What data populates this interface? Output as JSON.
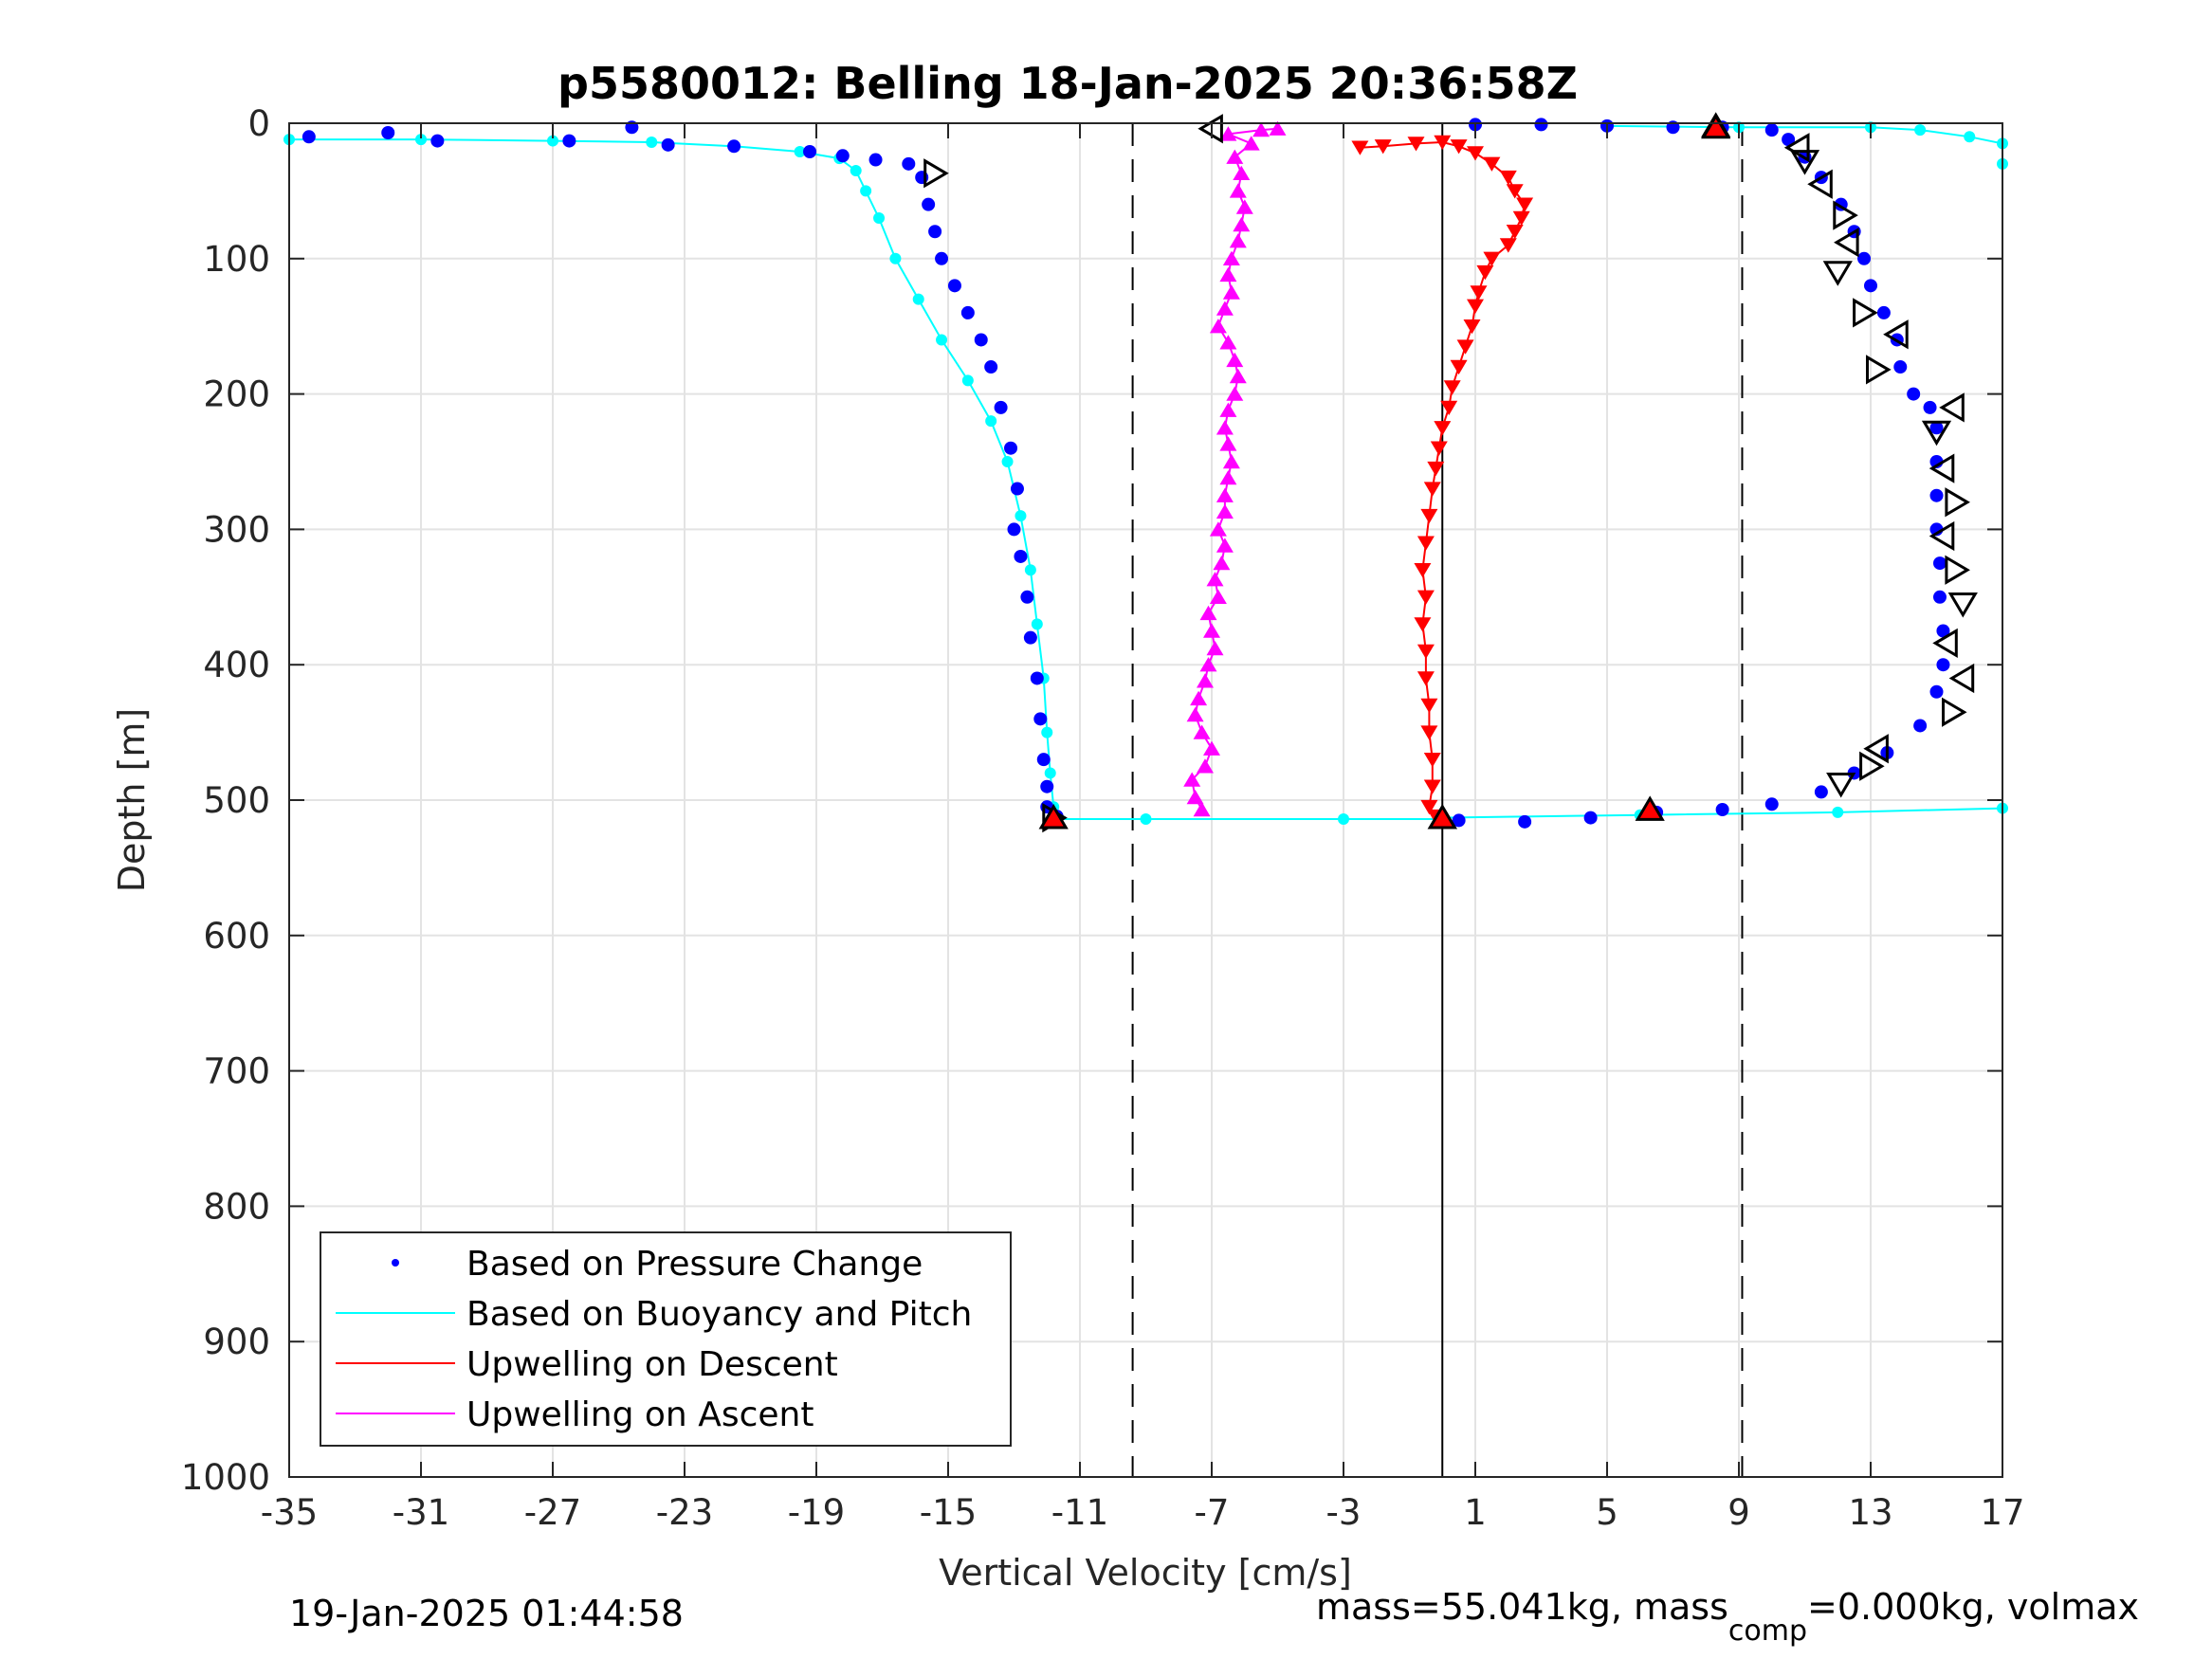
{
  "chart_data": {
    "type": "scatter",
    "title": "p5580012: Belling 18-Jan-2025 20:36:58Z",
    "xlabel": "Vertical Velocity [cm/s]",
    "ylabel": "Depth [m]",
    "xlim": [
      -35,
      17
    ],
    "ylim": [
      0,
      1000
    ],
    "y_reversed": true,
    "xticks": [
      -35,
      -31,
      -27,
      -23,
      -19,
      -15,
      -11,
      -7,
      -3,
      1,
      5,
      9,
      13,
      17
    ],
    "yticks": [
      0,
      100,
      200,
      300,
      400,
      500,
      600,
      700,
      800,
      900,
      1000
    ],
    "grid": true,
    "legend_position": "bottom-left",
    "reference_lines": [
      {
        "x": -9.4,
        "style": "dashed"
      },
      {
        "x": 9.1,
        "style": "dashed"
      },
      {
        "x": 0,
        "style": "solid"
      }
    ],
    "series": [
      {
        "name": "Based on Pressure Change",
        "color": "#0000ff",
        "marker": "dot",
        "descent": [
          [
            -34.4,
            10
          ],
          [
            -32,
            7
          ],
          [
            -30.5,
            13
          ],
          [
            -26.5,
            13
          ],
          [
            -24.6,
            3
          ],
          [
            -23.5,
            16
          ],
          [
            -21.5,
            17
          ],
          [
            -19.2,
            21
          ],
          [
            -18.2,
            24
          ],
          [
            -17.2,
            27
          ],
          [
            -16.2,
            30
          ],
          [
            -15.8,
            40
          ],
          [
            -15.6,
            60
          ],
          [
            -15.4,
            80
          ],
          [
            -15.2,
            100
          ],
          [
            -14.8,
            120
          ],
          [
            -14.4,
            140
          ],
          [
            -14,
            160
          ],
          [
            -13.7,
            180
          ],
          [
            -13.4,
            210
          ],
          [
            -13.1,
            240
          ],
          [
            -12.9,
            270
          ],
          [
            -13,
            300
          ],
          [
            -12.8,
            320
          ],
          [
            -12.6,
            350
          ],
          [
            -12.5,
            380
          ],
          [
            -12.3,
            410
          ],
          [
            -12.2,
            440
          ],
          [
            -12.1,
            470
          ],
          [
            -12,
            490
          ],
          [
            -12,
            505
          ],
          [
            -11.7,
            512
          ]
        ],
        "ascent": [
          [
            0.5,
            515
          ],
          [
            2.5,
            516
          ],
          [
            4.5,
            513
          ],
          [
            6.5,
            509
          ],
          [
            8.5,
            507
          ],
          [
            10,
            503
          ],
          [
            11.5,
            494
          ],
          [
            12.5,
            480
          ],
          [
            13.5,
            465
          ],
          [
            14.5,
            445
          ],
          [
            15,
            420
          ],
          [
            15.2,
            400
          ],
          [
            15.2,
            375
          ],
          [
            15.1,
            350
          ],
          [
            15.1,
            325
          ],
          [
            15,
            300
          ],
          [
            15,
            275
          ],
          [
            15,
            250
          ],
          [
            15,
            225
          ],
          [
            14.8,
            210
          ],
          [
            14.3,
            200
          ],
          [
            13.9,
            180
          ],
          [
            13.8,
            160
          ],
          [
            13.4,
            140
          ],
          [
            13,
            120
          ],
          [
            12.8,
            100
          ],
          [
            12.5,
            80
          ],
          [
            12.1,
            60
          ],
          [
            11.5,
            40
          ],
          [
            11,
            25
          ],
          [
            10.5,
            12
          ],
          [
            10,
            5
          ],
          [
            8.5,
            3
          ],
          [
            7,
            3
          ],
          [
            5,
            2
          ],
          [
            3,
            1
          ],
          [
            1,
            1
          ]
        ]
      },
      {
        "name": "Based on Buoyancy and Pitch",
        "color": "#00ffff",
        "marker": "line",
        "descent": [
          [
            -35,
            12
          ],
          [
            -31,
            12
          ],
          [
            -27,
            13
          ],
          [
            -24,
            14
          ],
          [
            -21.5,
            17
          ],
          [
            -19.5,
            21
          ],
          [
            -18.3,
            26
          ],
          [
            -17.8,
            35
          ],
          [
            -17.5,
            50
          ],
          [
            -17.1,
            70
          ],
          [
            -16.6,
            100
          ],
          [
            -15.9,
            130
          ],
          [
            -15.2,
            160
          ],
          [
            -14.4,
            190
          ],
          [
            -13.7,
            220
          ],
          [
            -13.2,
            250
          ],
          [
            -12.8,
            290
          ],
          [
            -12.5,
            330
          ],
          [
            -12.3,
            370
          ],
          [
            -12.1,
            410
          ],
          [
            -12,
            450
          ],
          [
            -11.9,
            480
          ],
          [
            -11.8,
            505
          ],
          [
            -11.7,
            514
          ],
          [
            -9,
            514
          ],
          [
            -3,
            514
          ],
          [
            0,
            514
          ]
        ],
        "ascent": [
          [
            0,
            513
          ],
          [
            6,
            511
          ],
          [
            12,
            509
          ],
          [
            17,
            506
          ],
          [
            17,
            30
          ],
          [
            17,
            15
          ],
          [
            16,
            10
          ],
          [
            14.5,
            5
          ],
          [
            13,
            3
          ],
          [
            9,
            3
          ],
          [
            5,
            2
          ]
        ]
      },
      {
        "name": "Upwelling on Descent",
        "color": "#ff0000",
        "marker": "triangle-down",
        "points": [
          [
            -2.5,
            18
          ],
          [
            -1.8,
            17
          ],
          [
            -0.8,
            15
          ],
          [
            0,
            14
          ],
          [
            0.5,
            17
          ],
          [
            1,
            22
          ],
          [
            1.5,
            30
          ],
          [
            2,
            40
          ],
          [
            2.2,
            50
          ],
          [
            2.5,
            60
          ],
          [
            2.4,
            70
          ],
          [
            2.2,
            80
          ],
          [
            2,
            90
          ],
          [
            1.5,
            100
          ],
          [
            1.3,
            110
          ],
          [
            1.1,
            125
          ],
          [
            1,
            135
          ],
          [
            0.9,
            150
          ],
          [
            0.7,
            165
          ],
          [
            0.5,
            180
          ],
          [
            0.3,
            195
          ],
          [
            0.2,
            210
          ],
          [
            0,
            225
          ],
          [
            -0.1,
            240
          ],
          [
            -0.2,
            255
          ],
          [
            -0.3,
            270
          ],
          [
            -0.4,
            290
          ],
          [
            -0.5,
            310
          ],
          [
            -0.6,
            330
          ],
          [
            -0.5,
            350
          ],
          [
            -0.6,
            370
          ],
          [
            -0.5,
            390
          ],
          [
            -0.5,
            410
          ],
          [
            -0.4,
            430
          ],
          [
            -0.4,
            450
          ],
          [
            -0.3,
            470
          ],
          [
            -0.3,
            490
          ],
          [
            -0.4,
            505
          ],
          [
            -0.2,
            512
          ]
        ]
      },
      {
        "name": "Upwelling on Ascent",
        "color": "#ff00ff",
        "marker": "triangle-up",
        "points": [
          [
            -7.3,
            507
          ],
          [
            -7.5,
            498
          ],
          [
            -7.6,
            485
          ],
          [
            -7.2,
            475
          ],
          [
            -7,
            462
          ],
          [
            -7.3,
            450
          ],
          [
            -7.5,
            437
          ],
          [
            -7.4,
            425
          ],
          [
            -7.2,
            412
          ],
          [
            -7.1,
            400
          ],
          [
            -6.9,
            388
          ],
          [
            -7,
            375
          ],
          [
            -7.1,
            362
          ],
          [
            -6.8,
            350
          ],
          [
            -6.9,
            337
          ],
          [
            -6.7,
            325
          ],
          [
            -6.6,
            312
          ],
          [
            -6.8,
            300
          ],
          [
            -6.6,
            287
          ],
          [
            -6.6,
            275
          ],
          [
            -6.5,
            262
          ],
          [
            -6.4,
            250
          ],
          [
            -6.5,
            237
          ],
          [
            -6.6,
            225
          ],
          [
            -6.5,
            212
          ],
          [
            -6.3,
            200
          ],
          [
            -6.2,
            187
          ],
          [
            -6.3,
            175
          ],
          [
            -6.5,
            162
          ],
          [
            -6.8,
            150
          ],
          [
            -6.6,
            137
          ],
          [
            -6.4,
            125
          ],
          [
            -6.5,
            112
          ],
          [
            -6.4,
            100
          ],
          [
            -6.2,
            87
          ],
          [
            -6.1,
            75
          ],
          [
            -6,
            62
          ],
          [
            -6.2,
            50
          ],
          [
            -6.1,
            37
          ],
          [
            -6.3,
            25
          ],
          [
            -5.8,
            15
          ],
          [
            -6.5,
            8
          ],
          [
            -5.5,
            5
          ],
          [
            -5,
            4
          ]
        ]
      }
    ],
    "open_triangles": [
      {
        "x": -15.4,
        "y": 37,
        "dir": "right"
      },
      {
        "x": -11.8,
        "y": 513,
        "dir": "right"
      },
      {
        "x": -7,
        "y": 4,
        "dir": "left"
      },
      {
        "x": 0,
        "y": 513,
        "dir": "up"
      },
      {
        "x": 8.3,
        "y": 2,
        "dir": "up"
      },
      {
        "x": 10.8,
        "y": 18,
        "dir": "left"
      },
      {
        "x": 11,
        "y": 28,
        "dir": "down"
      },
      {
        "x": 11.5,
        "y": 45,
        "dir": "left"
      },
      {
        "x": 12.2,
        "y": 68,
        "dir": "right"
      },
      {
        "x": 12.3,
        "y": 88,
        "dir": "left"
      },
      {
        "x": 12,
        "y": 110,
        "dir": "down"
      },
      {
        "x": 12.8,
        "y": 140,
        "dir": "right"
      },
      {
        "x": 13.8,
        "y": 156,
        "dir": "left"
      },
      {
        "x": 13.2,
        "y": 182,
        "dir": "right"
      },
      {
        "x": 15.5,
        "y": 210,
        "dir": "left"
      },
      {
        "x": 15,
        "y": 228,
        "dir": "down"
      },
      {
        "x": 15.2,
        "y": 255,
        "dir": "left"
      },
      {
        "x": 15.6,
        "y": 280,
        "dir": "right"
      },
      {
        "x": 15.2,
        "y": 305,
        "dir": "left"
      },
      {
        "x": 15.6,
        "y": 330,
        "dir": "right"
      },
      {
        "x": 15.8,
        "y": 355,
        "dir": "down"
      },
      {
        "x": 15.3,
        "y": 384,
        "dir": "left"
      },
      {
        "x": 15.8,
        "y": 410,
        "dir": "left"
      },
      {
        "x": 15.5,
        "y": 435,
        "dir": "right"
      },
      {
        "x": 13.2,
        "y": 462,
        "dir": "left"
      },
      {
        "x": 13,
        "y": 475,
        "dir": "right"
      },
      {
        "x": 12.1,
        "y": 488,
        "dir": "down"
      }
    ],
    "red_triangles": [
      {
        "x": -11.8,
        "y": 513
      },
      {
        "x": 0,
        "y": 513
      },
      {
        "x": 6.3,
        "y": 507
      },
      {
        "x": 8.3,
        "y": 3
      }
    ]
  },
  "legend": {
    "items": [
      {
        "label": "Based on Pressure Change",
        "color": "#0000ff",
        "kind": "dot"
      },
      {
        "label": "Based on Buoyancy and Pitch",
        "color": "#00ffff",
        "kind": "line"
      },
      {
        "label": "Upwelling on Descent",
        "color": "#ff0000",
        "kind": "line"
      },
      {
        "label": "Upwelling on Ascent",
        "color": "#ff00ff",
        "kind": "line"
      }
    ]
  },
  "footer": {
    "timestamp": "19-Jan-2025 01:44:58",
    "mass_prefix": "mass=55.041kg, mass",
    "mass_sub": "comp",
    "mass_suffix": "=0.000kg, volmax"
  }
}
